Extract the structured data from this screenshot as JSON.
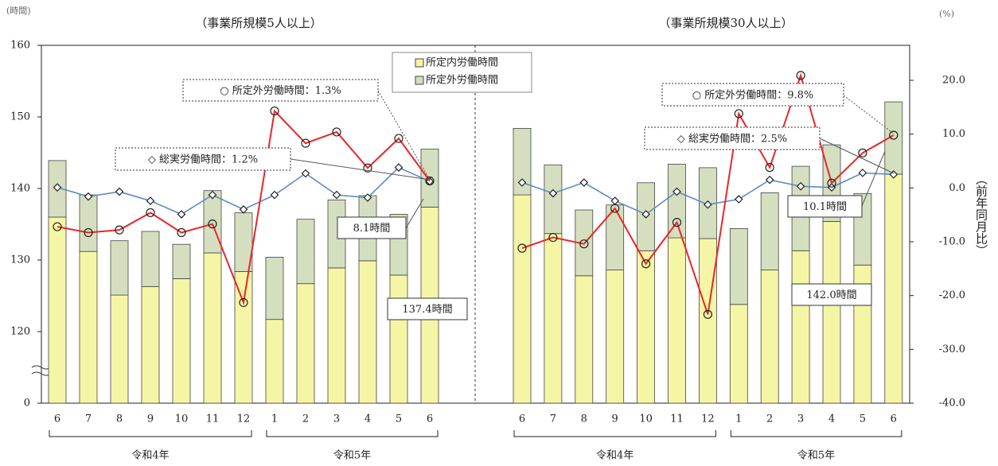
{
  "chart_data": {
    "type": "bar_line",
    "y_unit": "(時間)",
    "y2_unit": "(%)",
    "y2_title": "（前年同月比）",
    "ylim": [
      0,
      160
    ],
    "ybreak": 110,
    "yticks": [
      0,
      120,
      130,
      140,
      150,
      160
    ],
    "y2lim": [
      -40,
      26.5
    ],
    "y2ticks": [
      {
        "value": -40,
        "label": "-40.0"
      },
      {
        "value": -30,
        "label": "-30.0"
      },
      {
        "value": -20,
        "label": "-20.0"
      },
      {
        "value": -10,
        "label": "-10.0"
      },
      {
        "value": 0,
        "label": "0.0"
      },
      {
        "value": 10,
        "label": "10.0"
      },
      {
        "value": 20,
        "label": "20.0"
      }
    ],
    "series": [
      {
        "name": "所定内労働時間",
        "color": "#f5f5a6"
      },
      {
        "name": "所定外労働時間",
        "color": "#d5dfbf"
      },
      {
        "color": "#5b8bc6",
        "marker": "diamond",
        "axis": "y2"
      },
      {
        "color": "#e8262a",
        "marker": "circle",
        "axis": "y2"
      }
    ],
    "panels": [
      {
        "subtitle": "（事業所規模5人以上）",
        "groups": [
          {
            "label": "令和4年",
            "categories": [
              "6",
              "7",
              "8",
              "9",
              "10",
              "11",
              "12"
            ]
          },
          {
            "label": "令和5年",
            "categories": [
              "1",
              "2",
              "3",
              "4",
              "5",
              "6"
            ]
          }
        ],
        "values": [
          [
            136.0,
            131.2,
            125.1,
            126.3,
            127.4,
            131.0,
            128.4,
            121.7,
            126.7,
            128.9,
            129.9,
            127.9,
            137.4
          ],
          [
            7.9,
            7.9,
            7.6,
            7.7,
            4.8,
            8.7,
            8.2,
            8.7,
            9.0,
            9.5,
            9.1,
            8.5,
            8.1
          ],
          [
            0.1,
            -1.6,
            -0.7,
            -2.4,
            -4.9,
            -1.3,
            -4.0,
            -1.3,
            2.7,
            -1.3,
            -1.8,
            3.8,
            1.2
          ],
          [
            -7.2,
            -8.3,
            -7.8,
            -4.6,
            -8.3,
            -6.7,
            -21.3,
            14.3,
            8.3,
            10.4,
            3.7,
            9.2,
            1.3
          ]
        ],
        "annotations": [
          "○ 所定外労働時間：1.3%",
          "◇ 総実労働時間：1.2%",
          "8.1時間",
          "137.4時間"
        ]
      },
      {
        "subtitle": "（事業所規模30人以上）",
        "groups": [
          {
            "label": "令和4年",
            "categories": [
              "6",
              "7",
              "8",
              "9",
              "10",
              "11",
              "12"
            ]
          },
          {
            "label": "令和5年",
            "categories": [
              "1",
              "2",
              "3",
              "4",
              "5",
              "6"
            ]
          }
        ],
        "values": [
          [
            139.1,
            133.7,
            127.8,
            128.6,
            131.3,
            133.1,
            133.0,
            123.8,
            128.6,
            131.3,
            135.4,
            129.3,
            142.0
          ],
          [
            9.3,
            9.6,
            9.2,
            9.1,
            9.5,
            10.3,
            9.9,
            10.6,
            10.8,
            11.8,
            10.7,
            10.0,
            10.1
          ],
          [
            1.0,
            -1.0,
            1.0,
            -2.4,
            -4.9,
            -0.7,
            -3.1,
            -2.1,
            1.5,
            0.3,
            0.1,
            2.8,
            2.5
          ],
          [
            -11.2,
            -9.2,
            -10.4,
            -3.8,
            -14.1,
            -6.4,
            -23.5,
            13.8,
            3.8,
            20.9,
            0.9,
            6.5,
            9.8
          ]
        ],
        "annotations": [
          "○ 所定外労働時間：9.8%",
          "◇ 総実労働時間：2.5%",
          "10.1時間",
          "142.0時間"
        ]
      }
    ]
  }
}
